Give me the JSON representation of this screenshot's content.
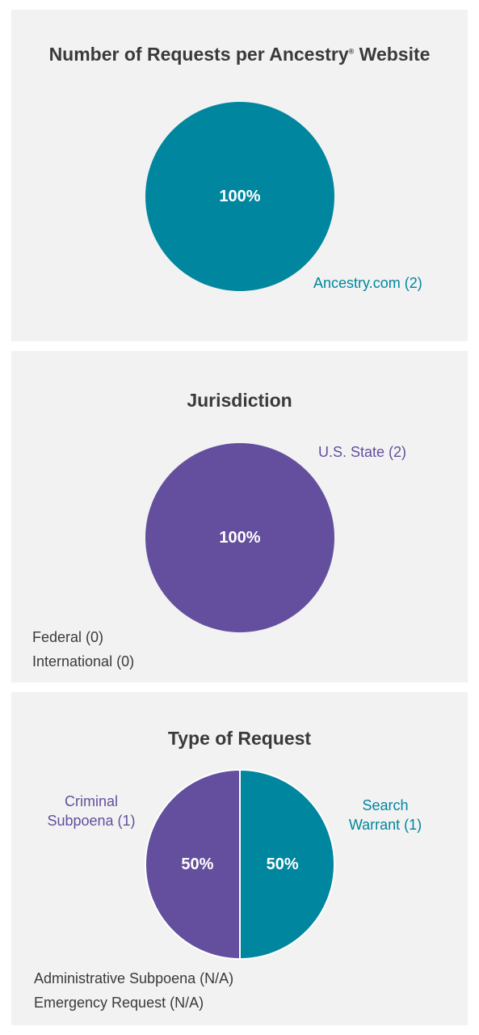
{
  "colors": {
    "teal": "#00869e",
    "purple": "#634f9d",
    "panel_bg": "#f2f2f2",
    "text": "#3a3a3a"
  },
  "chart_data": [
    {
      "type": "pie",
      "title": "Number of Requests per Ancestry",
      "title_mark": "®",
      "title_suffix": " Website",
      "slices": [
        {
          "label": "Ancestry.com (2)",
          "value": 2,
          "percent_label": "100%",
          "color": "#00869e"
        }
      ],
      "zero_labels": []
    },
    {
      "type": "pie",
      "title": "Jurisdiction",
      "slices": [
        {
          "label": "U.S. State (2)",
          "value": 2,
          "percent_label": "100%",
          "color": "#634f9d"
        }
      ],
      "zero_labels": [
        "Federal (0)",
        "International (0)"
      ]
    },
    {
      "type": "pie",
      "title": "Type of Request",
      "slices": [
        {
          "label": "Search Warrant (1)",
          "label_lines": [
            "Search",
            "Warrant (1)"
          ],
          "value": 1,
          "percent_label": "50%",
          "color": "#00869e"
        },
        {
          "label": "Criminal Subpoena (1)",
          "label_lines": [
            "Criminal",
            "Subpoena (1)"
          ],
          "value": 1,
          "percent_label": "50%",
          "color": "#634f9d"
        }
      ],
      "zero_labels": [
        "Administrative Subpoena (N/A)",
        "Emergency Request (N/A)"
      ]
    }
  ]
}
